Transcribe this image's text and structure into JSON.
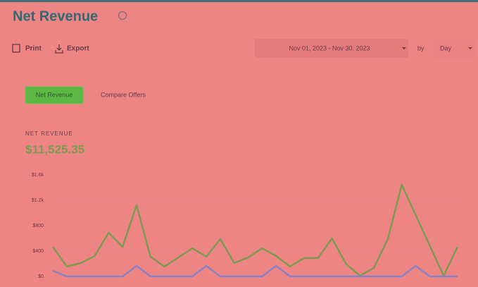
{
  "header": {
    "title": "Net Revenue",
    "print": "Print",
    "export": "Export",
    "date_range": "Nov 01, 2023 - Nov 30, 2023",
    "by": "by",
    "granularity": "Day"
  },
  "tabs": {
    "active": "Net Revenue",
    "other": "Compare Offers"
  },
  "summary": {
    "label": "NET REVENUE",
    "value": "$11,525.35"
  },
  "chart_data": {
    "type": "line",
    "categories": [
      null,
      null,
      null,
      null,
      null,
      null,
      null,
      null,
      null,
      null,
      null,
      null,
      null,
      null,
      null,
      null,
      null,
      null,
      null,
      null,
      null,
      null,
      null,
      null,
      null,
      null,
      null,
      null,
      null,
      null
    ],
    "series": [
      {
        "name": "Net Revenue",
        "color": "#7d9a4e",
        "values": [
          467,
          156,
          211,
          322,
          689,
          467,
          1122,
          311,
          156,
          300,
          444,
          311,
          589,
          211,
          300,
          444,
          322,
          156,
          289,
          289,
          600,
          200,
          11,
          133,
          589,
          1444,
          967,
          489,
          11,
          467
        ]
      },
      {
        "name": "Compare Offers",
        "color": "#8a82c2",
        "values": [
          89,
          0,
          0,
          0,
          0,
          0,
          167,
          0,
          0,
          0,
          0,
          167,
          0,
          0,
          0,
          0,
          167,
          0,
          0,
          0,
          0,
          0,
          0,
          0,
          0,
          0,
          167,
          0,
          0,
          0
        ]
      }
    ],
    "ylim": [
      0,
      1600
    ],
    "yticks": [
      {
        "value": 0,
        "label": "$0"
      },
      {
        "value": 400,
        "label": "$400"
      },
      {
        "value": 800,
        "label": "$800"
      },
      {
        "value": 1200,
        "label": "$1.2k"
      },
      {
        "value": 1600,
        "label": "$1.6k"
      }
    ],
    "grid": true
  }
}
